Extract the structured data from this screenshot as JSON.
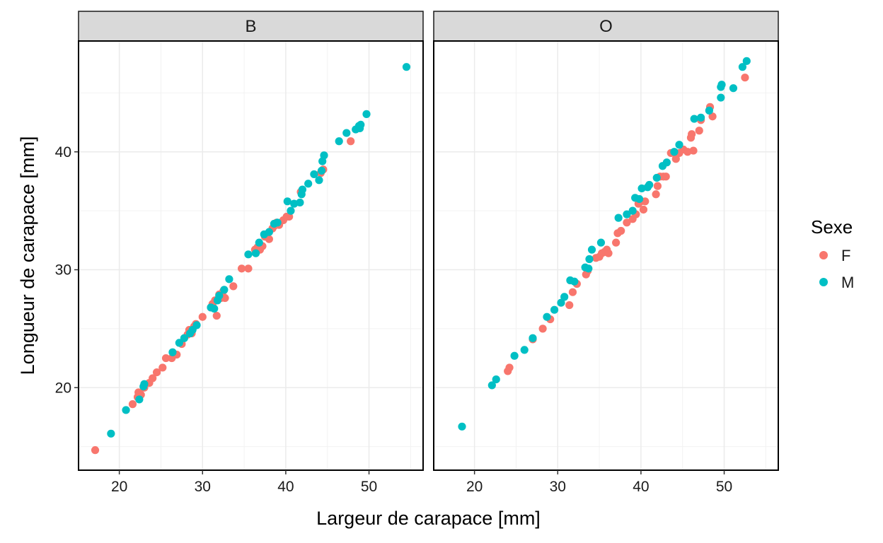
{
  "chart_data": {
    "type": "scatter",
    "xlabel": "Largeur de carapace  [mm]",
    "ylabel": "Longueur de carapace  [mm]",
    "xlim": [
      15.1,
      56.5
    ],
    "ylim": [
      13.0,
      49.4
    ],
    "x_ticks": [
      20,
      30,
      40,
      50
    ],
    "y_ticks": [
      20,
      30,
      40
    ],
    "grid": true,
    "legend": {
      "title": "Sexe",
      "position": "right",
      "entries": [
        {
          "label": "F",
          "color": "#F8766D"
        },
        {
          "label": "M",
          "color": "#00BFC4"
        }
      ]
    },
    "facets": [
      {
        "label": "B",
        "series": [
          {
            "name": "F",
            "color": "#F8766D",
            "points": [
              [
                17.1,
                14.7
              ],
              [
                21.6,
                18.6
              ],
              [
                22.2,
                19.2
              ],
              [
                22.3,
                19.6
              ],
              [
                22.6,
                19.4
              ],
              [
                23.0,
                20.0
              ],
              [
                23.6,
                20.4
              ],
              [
                24.0,
                20.8
              ],
              [
                24.5,
                21.3
              ],
              [
                25.2,
                21.7
              ],
              [
                25.6,
                22.5
              ],
              [
                26.3,
                22.5
              ],
              [
                26.9,
                22.8
              ],
              [
                27.5,
                23.7
              ],
              [
                28.2,
                24.5
              ],
              [
                28.4,
                24.9
              ],
              [
                28.7,
                24.6
              ],
              [
                29.0,
                25.2
              ],
              [
                29.2,
                25.4
              ],
              [
                30.0,
                26.0
              ],
              [
                31.0,
                26.8
              ],
              [
                31.2,
                27.1
              ],
              [
                31.5,
                27.4
              ],
              [
                31.7,
                26.1
              ],
              [
                32.0,
                27.9
              ],
              [
                32.2,
                27.6
              ],
              [
                32.5,
                28.2
              ],
              [
                32.7,
                27.6
              ],
              [
                33.7,
                28.6
              ],
              [
                34.7,
                30.1
              ],
              [
                35.5,
                30.1
              ],
              [
                36.3,
                31.7
              ],
              [
                36.6,
                31.9
              ],
              [
                36.9,
                31.7
              ],
              [
                37.2,
                32.0
              ],
              [
                37.5,
                32.8
              ],
              [
                38.0,
                32.6
              ],
              [
                38.4,
                33.5
              ],
              [
                38.6,
                33.7
              ],
              [
                38.9,
                34.0
              ],
              [
                39.2,
                33.8
              ],
              [
                39.7,
                34.2
              ],
              [
                40.1,
                34.5
              ],
              [
                40.4,
                34.5
              ],
              [
                41.8,
                36.6
              ],
              [
                44.2,
                38.2
              ],
              [
                44.5,
                38.5
              ],
              [
                47.8,
                40.9
              ]
            ]
          },
          {
            "name": "M",
            "color": "#00BFC4",
            "points": [
              [
                19.0,
                16.1
              ],
              [
                20.8,
                18.1
              ],
              [
                22.4,
                19.0
              ],
              [
                22.9,
                20.1
              ],
              [
                23.0,
                20.3
              ],
              [
                26.4,
                23.0
              ],
              [
                27.2,
                23.8
              ],
              [
                27.8,
                24.2
              ],
              [
                28.5,
                24.6
              ],
              [
                28.8,
                24.9
              ],
              [
                29.3,
                25.3
              ],
              [
                31.0,
                26.8
              ],
              [
                31.4,
                26.7
              ],
              [
                31.8,
                27.4
              ],
              [
                32.0,
                27.8
              ],
              [
                32.6,
                28.3
              ],
              [
                33.2,
                29.2
              ],
              [
                35.5,
                31.3
              ],
              [
                36.4,
                31.4
              ],
              [
                36.8,
                32.3
              ],
              [
                37.4,
                33.0
              ],
              [
                38.0,
                33.2
              ],
              [
                38.6,
                33.9
              ],
              [
                39.0,
                34.0
              ],
              [
                40.2,
                35.8
              ],
              [
                40.6,
                35.0
              ],
              [
                41.0,
                35.6
              ],
              [
                41.7,
                35.7
              ],
              [
                41.9,
                36.4
              ],
              [
                42.0,
                36.8
              ],
              [
                42.7,
                37.3
              ],
              [
                43.4,
                38.1
              ],
              [
                44.0,
                37.6
              ],
              [
                44.3,
                38.4
              ],
              [
                44.4,
                39.2
              ],
              [
                44.6,
                39.7
              ],
              [
                46.4,
                40.9
              ],
              [
                47.3,
                41.6
              ],
              [
                48.4,
                41.9
              ],
              [
                48.8,
                42.2
              ],
              [
                49.0,
                42.3
              ],
              [
                48.9,
                42.0
              ],
              [
                49.7,
                43.2
              ],
              [
                54.5,
                47.2
              ]
            ]
          }
        ]
      },
      {
        "label": "O",
        "series": [
          {
            "name": "F",
            "color": "#F8766D",
            "points": [
              [
                24.0,
                21.4
              ],
              [
                24.2,
                21.7
              ],
              [
                27.0,
                24.1
              ],
              [
                28.2,
                25.0
              ],
              [
                29.1,
                25.8
              ],
              [
                31.4,
                27.0
              ],
              [
                31.8,
                28.1
              ],
              [
                32.3,
                28.8
              ],
              [
                33.4,
                29.6
              ],
              [
                33.6,
                29.9
              ],
              [
                34.6,
                31.0
              ],
              [
                35.0,
                31.1
              ],
              [
                35.3,
                31.4
              ],
              [
                35.6,
                31.5
              ],
              [
                35.9,
                31.7
              ],
              [
                36.1,
                31.4
              ],
              [
                37.0,
                32.3
              ],
              [
                37.2,
                33.1
              ],
              [
                37.6,
                33.3
              ],
              [
                38.3,
                34.0
              ],
              [
                39.0,
                34.3
              ],
              [
                39.4,
                34.7
              ],
              [
                39.7,
                35.6
              ],
              [
                40.0,
                35.8
              ],
              [
                40.3,
                35.1
              ],
              [
                40.5,
                35.8
              ],
              [
                41.8,
                36.4
              ],
              [
                42.0,
                37.1
              ],
              [
                42.3,
                37.9
              ],
              [
                42.7,
                37.9
              ],
              [
                43.0,
                37.9
              ],
              [
                43.6,
                39.9
              ],
              [
                44.2,
                39.4
              ],
              [
                44.6,
                39.9
              ],
              [
                45.1,
                40.2
              ],
              [
                45.6,
                40.0
              ],
              [
                46.0,
                41.2
              ],
              [
                46.3,
                40.1
              ],
              [
                47.0,
                41.8
              ],
              [
                47.2,
                42.7
              ],
              [
                48.3,
                43.8
              ],
              [
                48.6,
                43.0
              ],
              [
                52.5,
                46.3
              ],
              [
                46.1,
                41.5
              ]
            ]
          },
          {
            "name": "M",
            "color": "#00BFC4",
            "points": [
              [
                18.5,
                16.7
              ],
              [
                22.1,
                20.2
              ],
              [
                22.6,
                20.7
              ],
              [
                24.8,
                22.7
              ],
              [
                26.0,
                23.2
              ],
              [
                27.0,
                24.2
              ],
              [
                28.7,
                26.0
              ],
              [
                29.6,
                26.6
              ],
              [
                30.4,
                27.2
              ],
              [
                30.8,
                27.7
              ],
              [
                31.5,
                29.1
              ],
              [
                32.0,
                29.0
              ],
              [
                33.3,
                30.2
              ],
              [
                33.7,
                30.1
              ],
              [
                33.8,
                30.9
              ],
              [
                34.1,
                31.7
              ],
              [
                35.2,
                32.3
              ],
              [
                37.3,
                34.4
              ],
              [
                38.3,
                34.7
              ],
              [
                39.0,
                35.0
              ],
              [
                39.3,
                36.1
              ],
              [
                39.8,
                36.0
              ],
              [
                40.1,
                36.9
              ],
              [
                40.8,
                37.0
              ],
              [
                41.0,
                37.2
              ],
              [
                41.9,
                37.8
              ],
              [
                42.6,
                38.8
              ],
              [
                43.1,
                39.1
              ],
              [
                44.0,
                40.0
              ],
              [
                44.6,
                40.6
              ],
              [
                46.4,
                42.8
              ],
              [
                47.2,
                42.9
              ],
              [
                48.2,
                43.5
              ],
              [
                49.6,
                44.6
              ],
              [
                49.6,
                45.5
              ],
              [
                49.7,
                45.7
              ],
              [
                51.1,
                45.4
              ],
              [
                52.2,
                47.2
              ],
              [
                52.7,
                47.7
              ]
            ]
          }
        ]
      }
    ]
  }
}
